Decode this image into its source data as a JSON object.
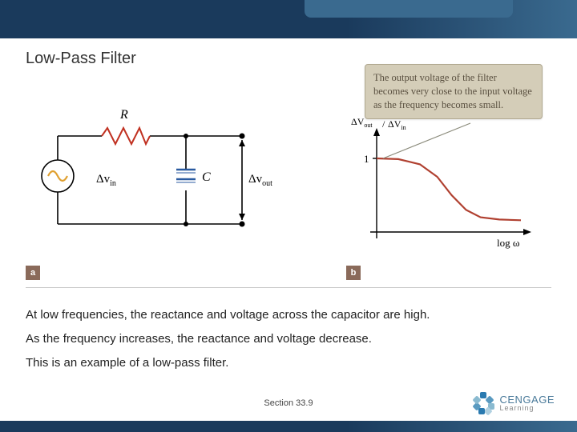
{
  "slide": {
    "title": "Low-Pass Filter",
    "section_label": "Section  33.9"
  },
  "callout": {
    "text": "The output voltage of the filter becomes very close to the input voltage as the frequency becomes small."
  },
  "circuit": {
    "type": "circuit-diagram",
    "labels": {
      "R": "R",
      "C": "C",
      "vin": "Δv",
      "vin_sub": "in",
      "vout": "Δv",
      "vout_sub": "out"
    },
    "colors": {
      "wire": "#000000",
      "resistor": "#c03020",
      "capacitor": "#2a5aa0",
      "source": "#e0a030",
      "node": "#000000"
    },
    "line_width": 1.6
  },
  "graph": {
    "type": "line",
    "xlabel": "log ω",
    "ylabel": "ΔV_out / ΔV_in",
    "ylabel_plain_top": "ΔV",
    "ylabel_plain_top_sub": "out",
    "ylabel_plain_bot": "ΔV",
    "ylabel_plain_bot_sub": "in",
    "ytick_label": "1",
    "ylim": [
      0,
      1.15
    ],
    "xlim": [
      0,
      10
    ],
    "curve_points_x": [
      0,
      1.5,
      3.0,
      4.2,
      5.2,
      6.2,
      7.2,
      8.5,
      10
    ],
    "curve_points_y": [
      1.0,
      0.99,
      0.92,
      0.75,
      0.5,
      0.3,
      0.2,
      0.17,
      0.16
    ],
    "curve_color": "#b04030",
    "curve_width": 2.2,
    "axis_color": "#000000",
    "background_color": "#ffffff"
  },
  "body": {
    "line1": "At low frequencies, the reactance and voltage across the capacitor are high.",
    "line2": "As the frequency increases, the reactance and voltage decrease.",
    "line3": "This is an example of a low-pass filter."
  },
  "panel_labels": {
    "a": "a",
    "b": "b"
  },
  "logo": {
    "brand": "CENGAGE",
    "sub": "Learning"
  },
  "colors": {
    "header_dark": "#1a3a5c",
    "header_light": "#3a6a8f",
    "callout_bg": "#d4cdb8",
    "panel_label_bg": "#8a6a5a"
  }
}
